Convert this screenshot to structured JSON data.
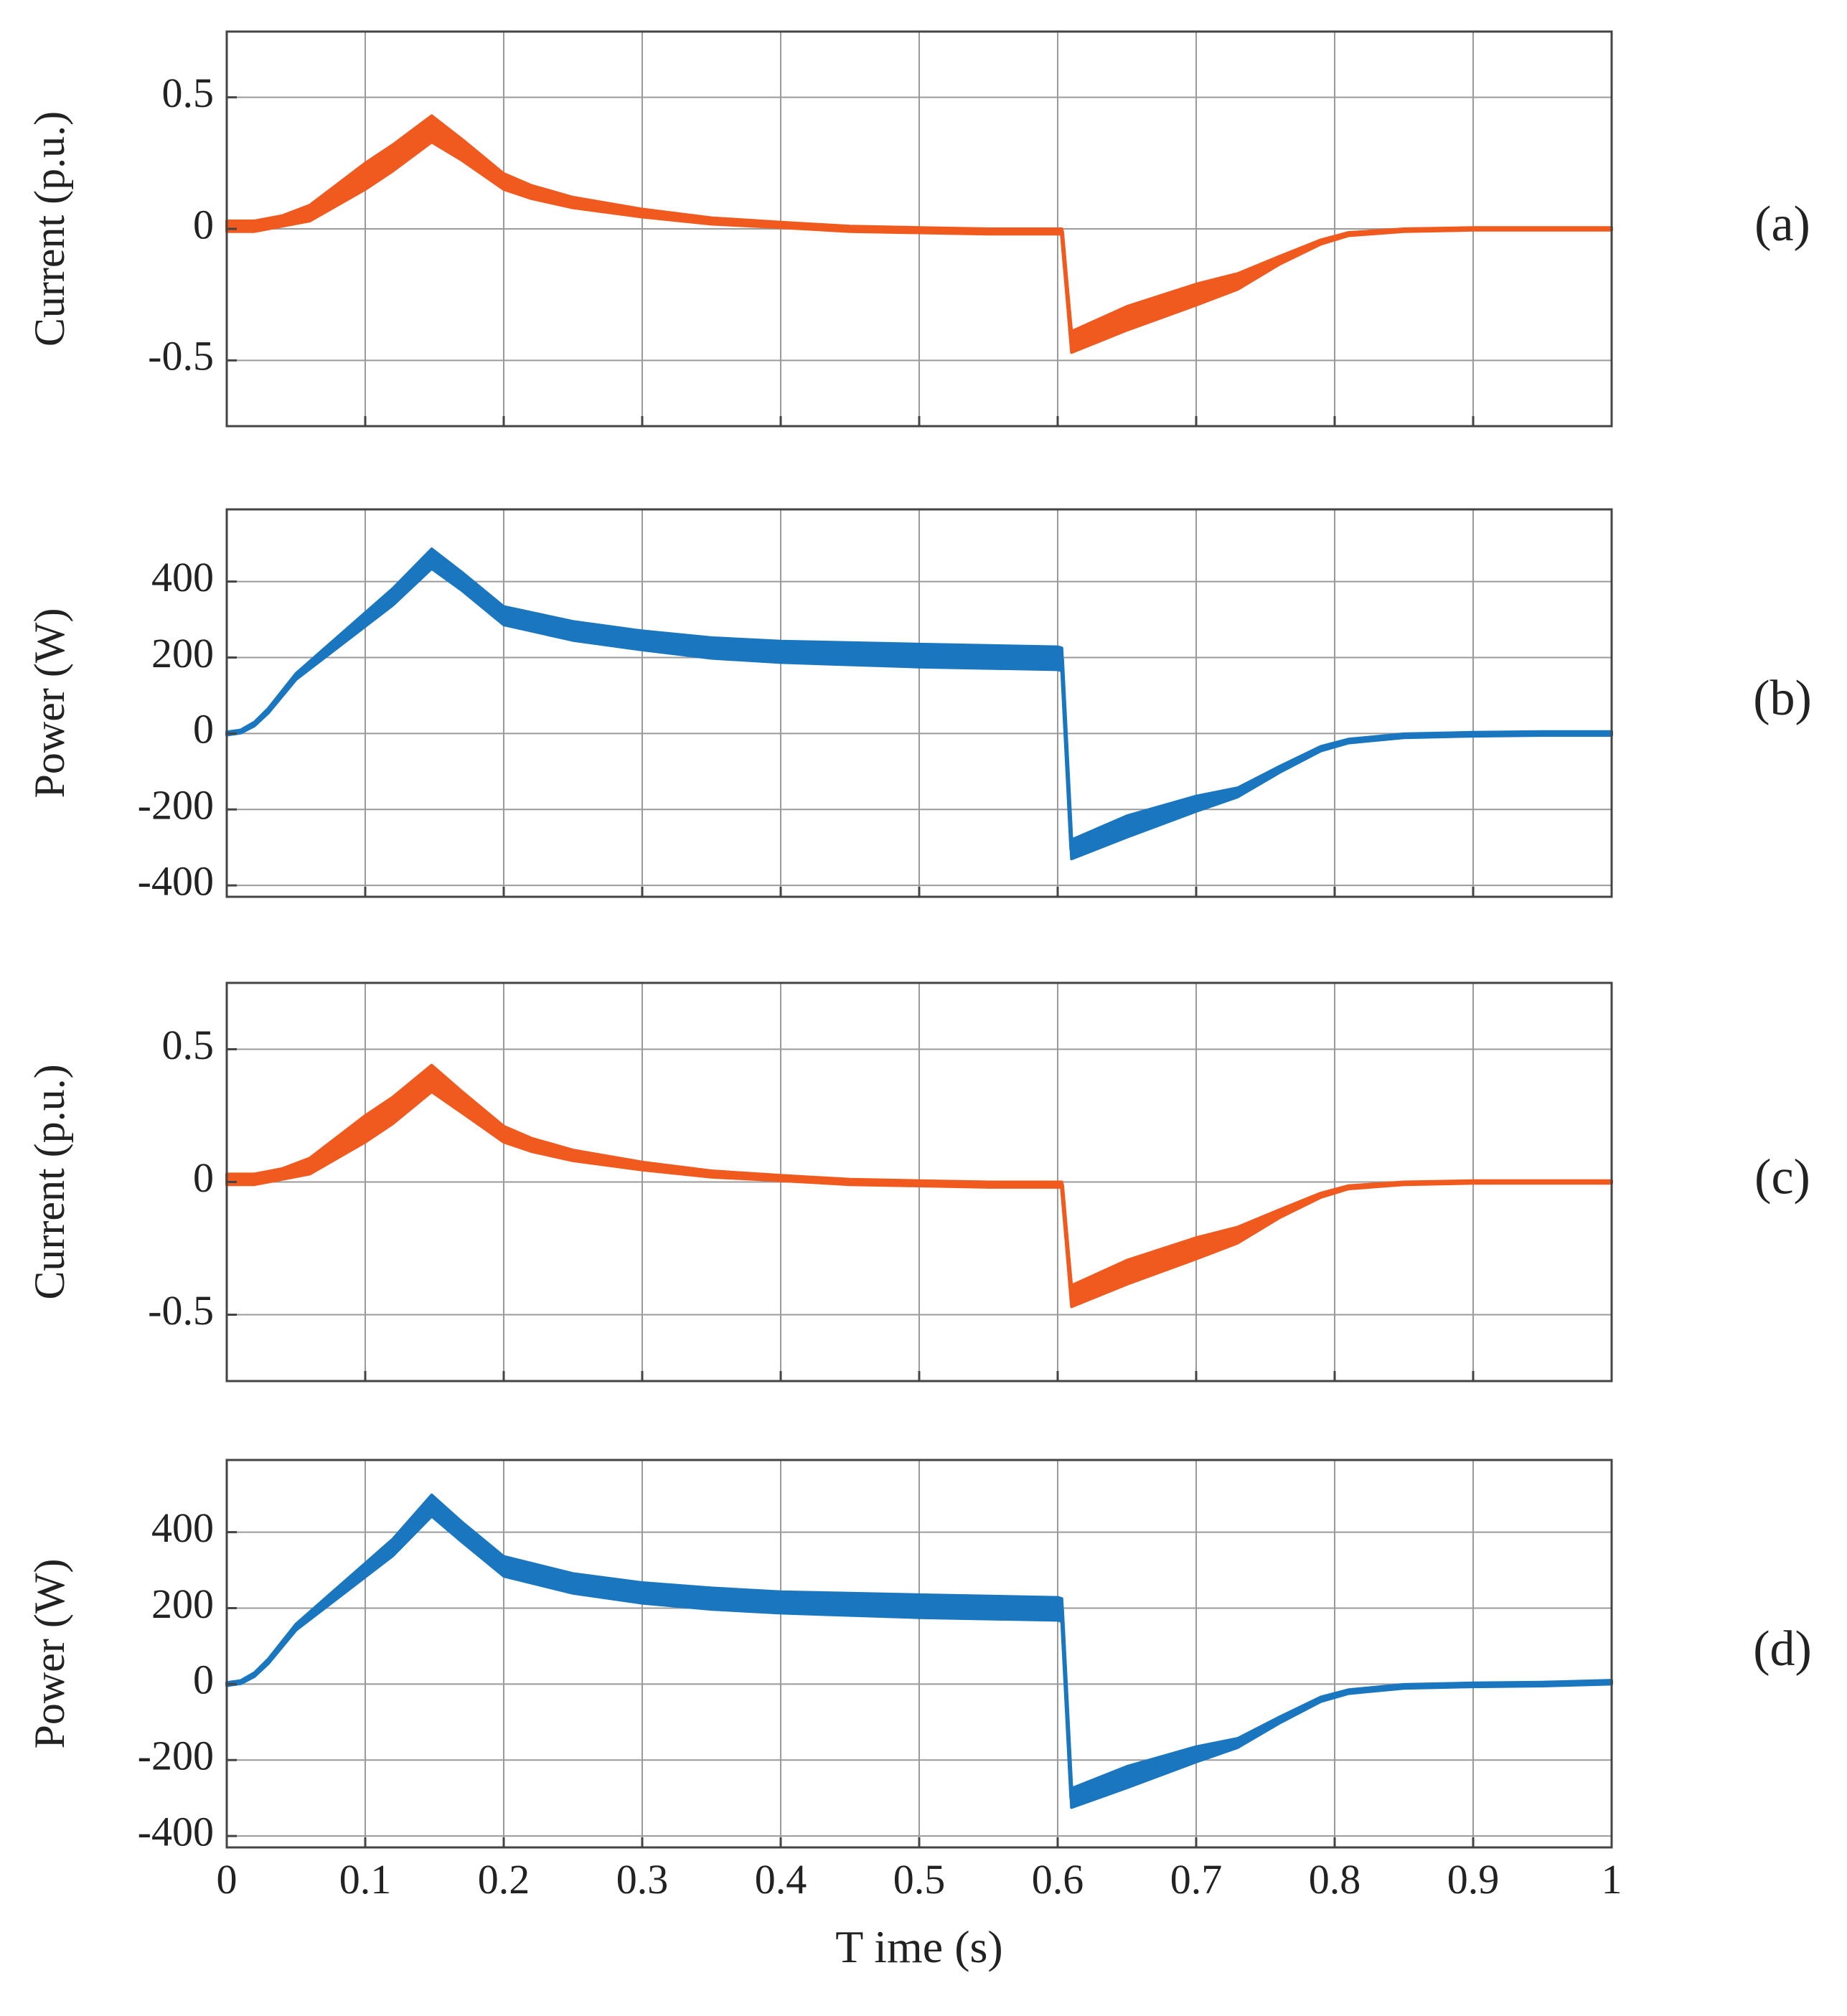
{
  "chart_data": [
    {
      "type": "line",
      "panel_label": "(a)",
      "ylabel": "Current (p.u.)",
      "xlim": [
        0,
        1
      ],
      "ylim": [
        -0.75,
        0.75
      ],
      "yticks": [
        -0.5,
        0,
        0.5
      ],
      "ytick_labels": [
        "-0.5",
        "0",
        "0.5"
      ],
      "xticks": [
        0,
        0.1,
        0.2,
        0.3,
        0.4,
        0.5,
        0.6,
        0.7,
        0.8,
        0.9,
        1
      ],
      "grid": true,
      "series": [
        {
          "name": "current",
          "color": "#F05A1E",
          "x": [
            0,
            0.02,
            0.04,
            0.06,
            0.08,
            0.1,
            0.12,
            0.148,
            0.17,
            0.2,
            0.22,
            0.25,
            0.3,
            0.35,
            0.4,
            0.45,
            0.5,
            0.55,
            0.6,
            0.603,
            0.61,
            0.65,
            0.7,
            0.73,
            0.76,
            0.79,
            0.81,
            0.85,
            0.9,
            0.95,
            1.0
          ],
          "y": [
            0.01,
            0.01,
            0.03,
            0.06,
            0.13,
            0.2,
            0.27,
            0.38,
            0.3,
            0.18,
            0.14,
            0.1,
            0.06,
            0.03,
            0.015,
            0.0,
            -0.005,
            -0.01,
            -0.01,
            -0.01,
            -0.43,
            -0.34,
            -0.25,
            -0.2,
            -0.12,
            -0.05,
            -0.02,
            -0.005,
            0.0,
            0.0,
            0.0
          ],
          "band": [
            0.02,
            0.02,
            0.02,
            0.03,
            0.04,
            0.05,
            0.05,
            0.05,
            0.04,
            0.03,
            0.025,
            0.02,
            0.015,
            0.012,
            0.01,
            0.01,
            0.01,
            0.01,
            0.01,
            0.01,
            0.04,
            0.045,
            0.04,
            0.03,
            0.015,
            0.008,
            0.006,
            0.005,
            0.005,
            0.005,
            0.005
          ]
        }
      ]
    },
    {
      "type": "line",
      "panel_label": "(b)",
      "ylabel": "Power (W)",
      "xlim": [
        0,
        1
      ],
      "ylim": [
        -430,
        590
      ],
      "yticks": [
        -400,
        -200,
        0,
        200,
        400
      ],
      "ytick_labels": [
        "-400",
        "-200",
        "0",
        "200",
        "400"
      ],
      "xticks": [
        0,
        0.1,
        0.2,
        0.3,
        0.4,
        0.5,
        0.6,
        0.7,
        0.8,
        0.9,
        1
      ],
      "grid": true,
      "series": [
        {
          "name": "power",
          "color": "#1A77BF",
          "x": [
            0,
            0.01,
            0.02,
            0.03,
            0.05,
            0.07,
            0.1,
            0.12,
            0.148,
            0.17,
            0.2,
            0.25,
            0.3,
            0.35,
            0.4,
            0.5,
            0.6,
            0.603,
            0.61,
            0.65,
            0.7,
            0.73,
            0.76,
            0.79,
            0.81,
            0.85,
            0.9,
            0.95,
            1.0
          ],
          "y": [
            0,
            5,
            25,
            60,
            150,
            210,
            300,
            360,
            460,
            400,
            310,
            270,
            245,
            225,
            215,
            205,
            198,
            195,
            -305,
            -245,
            -185,
            -155,
            -95,
            -40,
            -20,
            -6,
            -2,
            0,
            0
          ],
          "band": [
            4,
            4,
            5,
            6,
            8,
            12,
            18,
            22,
            26,
            24,
            24,
            25,
            25,
            27,
            28,
            30,
            30,
            30,
            25,
            28,
            20,
            12,
            8,
            6,
            5,
            5,
            5,
            5,
            5
          ]
        }
      ]
    },
    {
      "type": "line",
      "panel_label": "(c)",
      "ylabel": "Current (p.u.)",
      "xlim": [
        0,
        1
      ],
      "ylim": [
        -0.75,
        0.75
      ],
      "yticks": [
        -0.5,
        0,
        0.5
      ],
      "ytick_labels": [
        "-0.5",
        "0",
        "0.5"
      ],
      "xticks": [
        0,
        0.1,
        0.2,
        0.3,
        0.4,
        0.5,
        0.6,
        0.7,
        0.8,
        0.9,
        1
      ],
      "grid": true,
      "series": [
        {
          "name": "current",
          "color": "#F05A1E",
          "x": [
            0,
            0.02,
            0.04,
            0.06,
            0.08,
            0.1,
            0.12,
            0.148,
            0.17,
            0.2,
            0.22,
            0.25,
            0.3,
            0.35,
            0.4,
            0.45,
            0.5,
            0.55,
            0.6,
            0.603,
            0.61,
            0.65,
            0.7,
            0.73,
            0.76,
            0.79,
            0.81,
            0.85,
            0.9,
            0.95,
            1.0
          ],
          "y": [
            0.01,
            0.01,
            0.03,
            0.06,
            0.13,
            0.2,
            0.27,
            0.39,
            0.3,
            0.18,
            0.14,
            0.1,
            0.06,
            0.03,
            0.015,
            0.0,
            -0.005,
            -0.01,
            -0.01,
            -0.01,
            -0.43,
            -0.34,
            -0.25,
            -0.2,
            -0.12,
            -0.05,
            -0.02,
            -0.005,
            0.0,
            0.0,
            0.0
          ],
          "band": [
            0.02,
            0.02,
            0.02,
            0.03,
            0.04,
            0.05,
            0.05,
            0.05,
            0.04,
            0.03,
            0.025,
            0.02,
            0.015,
            0.012,
            0.01,
            0.01,
            0.01,
            0.01,
            0.01,
            0.01,
            0.04,
            0.045,
            0.04,
            0.03,
            0.015,
            0.008,
            0.006,
            0.005,
            0.005,
            0.005,
            0.005
          ]
        }
      ]
    },
    {
      "type": "line",
      "panel_label": "(d)",
      "ylabel": "Power (W)",
      "xlim": [
        0,
        1
      ],
      "ylim": [
        -430,
        590
      ],
      "yticks": [
        -400,
        -200,
        0,
        200,
        400
      ],
      "ytick_labels": [
        "-400",
        "-200",
        "0",
        "200",
        "400"
      ],
      "xticks": [
        0,
        0.1,
        0.2,
        0.3,
        0.4,
        0.5,
        0.6,
        0.7,
        0.8,
        0.9,
        1
      ],
      "xtick_labels": [
        "0",
        "0.1",
        "0.2",
        "0.3",
        "0.4",
        "0.5",
        "0.6",
        "0.7",
        "0.8",
        "0.9",
        "1"
      ],
      "xlabel": "T ime (s)",
      "grid": true,
      "series": [
        {
          "name": "power",
          "color": "#1A77BF",
          "x": [
            0,
            0.01,
            0.02,
            0.03,
            0.05,
            0.07,
            0.1,
            0.12,
            0.148,
            0.17,
            0.2,
            0.25,
            0.3,
            0.35,
            0.4,
            0.5,
            0.6,
            0.603,
            0.61,
            0.65,
            0.7,
            0.73,
            0.76,
            0.79,
            0.81,
            0.85,
            0.9,
            0.95,
            1.0
          ],
          "y": [
            0,
            5,
            25,
            60,
            150,
            210,
            300,
            360,
            470,
            400,
            310,
            265,
            240,
            225,
            215,
            205,
            198,
            195,
            -300,
            -245,
            -185,
            -155,
            -95,
            -40,
            -20,
            -6,
            -2,
            0,
            5
          ],
          "band": [
            4,
            4,
            5,
            6,
            8,
            12,
            18,
            22,
            28,
            26,
            26,
            26,
            27,
            28,
            28,
            30,
            30,
            30,
            25,
            28,
            20,
            12,
            8,
            6,
            5,
            5,
            5,
            5,
            5
          ]
        }
      ]
    }
  ]
}
